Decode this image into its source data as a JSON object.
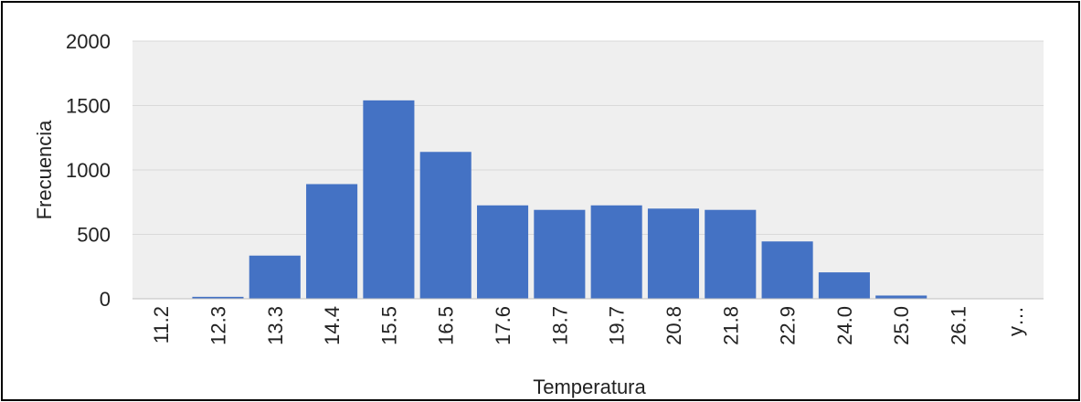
{
  "chart_data": {
    "type": "bar",
    "xlabel": "Temperatura",
    "ylabel": "Frecuencia",
    "ylim": [
      0,
      2000
    ],
    "yticks": [
      0,
      500,
      1000,
      1500,
      2000
    ],
    "grid": true,
    "categories": [
      "11.2",
      "12.3",
      "13.3",
      "14.4",
      "15.5",
      "16.5",
      "17.6",
      "18.7",
      "19.7",
      "20.8",
      "21.8",
      "22.9",
      "24.0",
      "25.0",
      "26.1",
      "y…"
    ],
    "values": [
      0,
      15,
      335,
      890,
      1540,
      1140,
      725,
      690,
      725,
      700,
      690,
      445,
      205,
      25,
      0,
      0
    ],
    "colors": {
      "bar": "#4472C4",
      "plot_bg": "#EFEFEF",
      "grid": "#D9D9D9",
      "axis": "#BFBFBF"
    }
  }
}
